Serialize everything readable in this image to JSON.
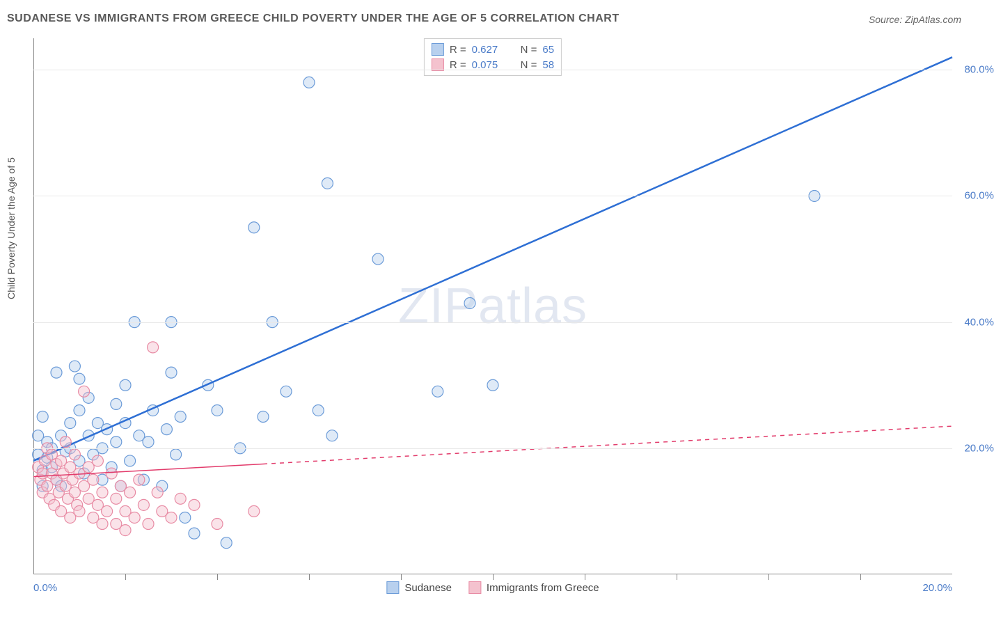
{
  "title": "SUDANESE VS IMMIGRANTS FROM GREECE CHILD POVERTY UNDER THE AGE OF 5 CORRELATION CHART",
  "source": "Source: ZipAtlas.com",
  "y_axis_label": "Child Poverty Under the Age of 5",
  "watermark": "ZIPatlas",
  "chart": {
    "type": "scatter",
    "xlim": [
      0,
      20
    ],
    "ylim": [
      0,
      85
    ],
    "x_ticks": [
      0,
      20
    ],
    "x_tick_labels": [
      "0.0%",
      "20.0%"
    ],
    "x_minor_ticks": [
      2,
      4,
      6,
      8,
      10,
      12,
      14,
      16,
      18
    ],
    "y_ticks": [
      20,
      40,
      60,
      80
    ],
    "y_tick_labels": [
      "20.0%",
      "40.0%",
      "60.0%",
      "80.0%"
    ],
    "background_color": "#ffffff",
    "grid_color": "#e8e8e8",
    "axis_color": "#888888",
    "marker_radius": 8,
    "series": [
      {
        "name": "Sudanese",
        "color_fill": "#b8d0ee",
        "color_stroke": "#6b9bd8",
        "R": "0.627",
        "N": "65",
        "trend": {
          "x1": 0,
          "y1": 18,
          "x2": 20,
          "y2": 82,
          "solid_until_x": 20,
          "stroke": "#2e6fd4",
          "width": 2.5
        },
        "points": [
          [
            0.1,
            19
          ],
          [
            0.1,
            22
          ],
          [
            0.2,
            16.5
          ],
          [
            0.2,
            25
          ],
          [
            0.2,
            14
          ],
          [
            0.3,
            21
          ],
          [
            0.3,
            18.5
          ],
          [
            0.4,
            20
          ],
          [
            0.4,
            17
          ],
          [
            0.5,
            32
          ],
          [
            0.5,
            15
          ],
          [
            0.6,
            22
          ],
          [
            0.6,
            14
          ],
          [
            0.7,
            19.5
          ],
          [
            0.8,
            20
          ],
          [
            0.8,
            24
          ],
          [
            0.9,
            33
          ],
          [
            1.0,
            18
          ],
          [
            1.0,
            26
          ],
          [
            1.0,
            31
          ],
          [
            1.1,
            16
          ],
          [
            1.2,
            22
          ],
          [
            1.2,
            28
          ],
          [
            1.3,
            19
          ],
          [
            1.4,
            24
          ],
          [
            1.5,
            20
          ],
          [
            1.5,
            15
          ],
          [
            1.6,
            23
          ],
          [
            1.7,
            17
          ],
          [
            1.8,
            27
          ],
          [
            1.8,
            21
          ],
          [
            1.9,
            14
          ],
          [
            2.0,
            24
          ],
          [
            2.0,
            30
          ],
          [
            2.1,
            18
          ],
          [
            2.2,
            40
          ],
          [
            2.3,
            22
          ],
          [
            2.4,
            15
          ],
          [
            2.5,
            21
          ],
          [
            2.6,
            26
          ],
          [
            2.8,
            14
          ],
          [
            2.9,
            23
          ],
          [
            3.0,
            40
          ],
          [
            3.0,
            32
          ],
          [
            3.1,
            19
          ],
          [
            3.2,
            25
          ],
          [
            3.3,
            9
          ],
          [
            3.5,
            6.5
          ],
          [
            3.8,
            30
          ],
          [
            4.0,
            26
          ],
          [
            4.2,
            5
          ],
          [
            4.5,
            20
          ],
          [
            4.8,
            55
          ],
          [
            5.0,
            25
          ],
          [
            5.2,
            40
          ],
          [
            5.5,
            29
          ],
          [
            6.0,
            78
          ],
          [
            6.2,
            26
          ],
          [
            6.4,
            62
          ],
          [
            6.5,
            22
          ],
          [
            7.5,
            50
          ],
          [
            8.8,
            29
          ],
          [
            9.5,
            43
          ],
          [
            10.0,
            30
          ],
          [
            17.0,
            60
          ]
        ]
      },
      {
        "name": "Immigrants from Greece",
        "color_fill": "#f4c2ce",
        "color_stroke": "#e88ba4",
        "R": "0.075",
        "N": "58",
        "trend": {
          "x1": 0,
          "y1": 15.5,
          "x2": 20,
          "y2": 23.5,
          "solid_until_x": 5,
          "stroke": "#e23b6b",
          "width": 1.5
        },
        "points": [
          [
            0.1,
            17
          ],
          [
            0.15,
            15
          ],
          [
            0.2,
            16
          ],
          [
            0.2,
            13
          ],
          [
            0.25,
            18
          ],
          [
            0.3,
            14
          ],
          [
            0.3,
            20
          ],
          [
            0.35,
            12
          ],
          [
            0.4,
            16
          ],
          [
            0.4,
            19
          ],
          [
            0.45,
            11
          ],
          [
            0.5,
            15
          ],
          [
            0.5,
            17.5
          ],
          [
            0.55,
            13
          ],
          [
            0.6,
            18
          ],
          [
            0.6,
            10
          ],
          [
            0.65,
            16
          ],
          [
            0.7,
            14
          ],
          [
            0.7,
            21
          ],
          [
            0.75,
            12
          ],
          [
            0.8,
            17
          ],
          [
            0.8,
            9
          ],
          [
            0.85,
            15
          ],
          [
            0.9,
            13
          ],
          [
            0.9,
            19
          ],
          [
            0.95,
            11
          ],
          [
            1.0,
            16
          ],
          [
            1.0,
            10
          ],
          [
            1.1,
            29
          ],
          [
            1.1,
            14
          ],
          [
            1.2,
            12
          ],
          [
            1.2,
            17
          ],
          [
            1.3,
            9
          ],
          [
            1.3,
            15
          ],
          [
            1.4,
            11
          ],
          [
            1.4,
            18
          ],
          [
            1.5,
            8
          ],
          [
            1.5,
            13
          ],
          [
            1.6,
            10
          ],
          [
            1.7,
            16
          ],
          [
            1.8,
            8
          ],
          [
            1.8,
            12
          ],
          [
            1.9,
            14
          ],
          [
            2.0,
            10
          ],
          [
            2.0,
            7
          ],
          [
            2.1,
            13
          ],
          [
            2.2,
            9
          ],
          [
            2.3,
            15
          ],
          [
            2.4,
            11
          ],
          [
            2.5,
            8
          ],
          [
            2.6,
            36
          ],
          [
            2.7,
            13
          ],
          [
            2.8,
            10
          ],
          [
            3.0,
            9
          ],
          [
            3.2,
            12
          ],
          [
            3.5,
            11
          ],
          [
            4.0,
            8
          ],
          [
            4.8,
            10
          ]
        ]
      }
    ]
  },
  "legend_top": {
    "rows": [
      {
        "swatch_fill": "#b8d0ee",
        "swatch_stroke": "#6b9bd8",
        "r_label": "R =",
        "r_value": "0.627",
        "n_label": "N =",
        "n_value": "65"
      },
      {
        "swatch_fill": "#f4c2ce",
        "swatch_stroke": "#e88ba4",
        "r_label": "R =",
        "r_value": "0.075",
        "n_label": "N =",
        "n_value": "58"
      }
    ]
  },
  "legend_bottom": {
    "items": [
      {
        "swatch_fill": "#b8d0ee",
        "swatch_stroke": "#6b9bd8",
        "label": "Sudanese"
      },
      {
        "swatch_fill": "#f4c2ce",
        "swatch_stroke": "#e88ba4",
        "label": "Immigrants from Greece"
      }
    ]
  }
}
